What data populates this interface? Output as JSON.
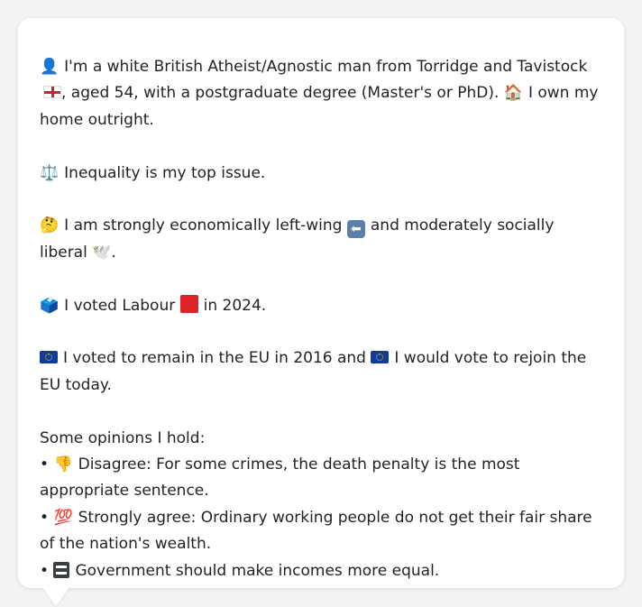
{
  "bubble": {
    "intro": {
      "person_emoji": "👤",
      "part1": "I'm a white British Atheist/Agnostic man from Torridge and Tavistock",
      "part2": ", aged 54, with a postgraduate degree (Master's or PhD).",
      "house_emoji": "🏠",
      "part3": "I own my home outright."
    },
    "issue": {
      "scales_emoji": "⚖️",
      "text": "Inequality is my top issue."
    },
    "ideology": {
      "thinking_emoji": "🤔",
      "part1": "I am strongly economically left-wing",
      "arrow_glyph": "⬅",
      "part2": "and moderately socially liberal",
      "dove_emoji": "🕊️",
      "part3": "."
    },
    "vote": {
      "ballot_emoji": "🗳️",
      "part1": "I voted Labour",
      "part2": "in 2024."
    },
    "eu": {
      "part1": "I voted to remain in the EU in 2016 and",
      "part2": "I would vote to rejoin the EU today."
    },
    "opinions": {
      "heading": "Some opinions I hold:",
      "bullet": "•",
      "items": [
        {
          "emoji": "👎",
          "text": "Disagree: For some crimes, the death penalty is the most appropriate sentence."
        },
        {
          "emoji": "💯",
          "text": "Strongly agree: Ordinary working people do not get their fair share of the nation's wealth."
        },
        {
          "emoji": "",
          "text": "Government should make incomes more equal."
        }
      ]
    }
  },
  "colors": {
    "page_background": "#f2f3f5",
    "bubble_background": "#ffffff",
    "text": "#1e2126",
    "labour_red": "#e0222a",
    "eu_blue": "#123c9c"
  },
  "icons": [
    "person-icon",
    "england-flag-icon",
    "house-icon",
    "scales-icon",
    "thinking-face-icon",
    "left-arrow-icon",
    "dove-icon",
    "ballot-box-icon",
    "red-square-icon",
    "eu-flag-icon",
    "thumbs-down-icon",
    "hundred-points-icon",
    "equals-icon"
  ]
}
